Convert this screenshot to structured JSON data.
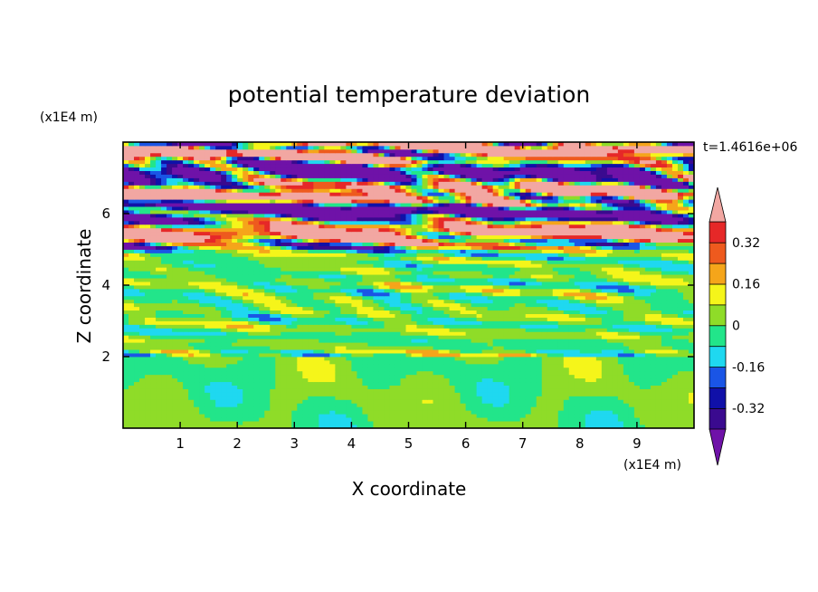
{
  "chart_data": {
    "type": "heatmap",
    "title": "potential temperature deviation",
    "time_label": "t=1.4616e+06",
    "x_axis": {
      "label": "X coordinate",
      "unit": "(x1E4 m)",
      "range": [
        0,
        10
      ],
      "ticks": [
        1,
        2,
        3,
        4,
        5,
        6,
        7,
        8,
        9
      ]
    },
    "z_axis": {
      "label": "Z coordinate",
      "unit": "(x1E4 m)",
      "range": [
        0,
        8
      ],
      "ticks": [
        2,
        4,
        6
      ]
    },
    "colorbar": {
      "extend": "both",
      "levels": [
        -0.4,
        -0.32,
        -0.24,
        -0.16,
        -0.08,
        0,
        0.08,
        0.16,
        0.24,
        0.32,
        0.4
      ],
      "colors": [
        "#3a0a8f",
        "#1010a8",
        "#1a55e6",
        "#1fd8f0",
        "#22e58a",
        "#8fdc28",
        "#f5f51a",
        "#f5a51a",
        "#ee5a1e",
        "#e62828"
      ],
      "under_color": "#6f12a8",
      "over_color": "#f2a7a2",
      "tick_labels": [
        "0.32",
        "0.16",
        "0",
        "-0.16",
        "-0.32"
      ],
      "tick_values": [
        0.32,
        0.16,
        0,
        -0.16,
        -0.32
      ]
    },
    "field_structure": [
      {
        "z_range": [
          0,
          2.0
        ],
        "description": "weak deviation, mostly between -0.08 and 0.08"
      },
      {
        "z_range": [
          2.0,
          5.0
        ],
        "description": "small-scale alternating positive and negative layers"
      },
      {
        "z_range": [
          5.0,
          8.0
        ],
        "description": "strong horizontal bands exceeding +/-0.4"
      }
    ]
  }
}
